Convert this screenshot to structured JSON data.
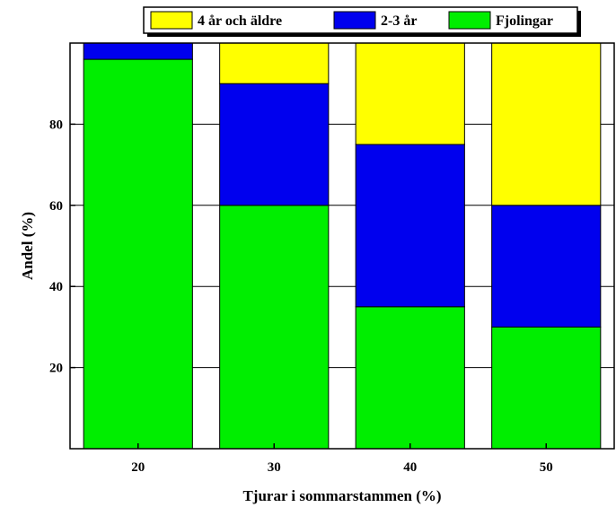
{
  "chart_data": {
    "type": "bar",
    "stacked": true,
    "categories": [
      "20",
      "30",
      "40",
      "50"
    ],
    "series": [
      {
        "name": "Fjolingar",
        "color": "#00ee00",
        "values": [
          96,
          60,
          35,
          30
        ]
      },
      {
        "name": "2-3 år",
        "color": "#0000ee",
        "values": [
          4,
          30,
          40,
          30
        ]
      },
      {
        "name": "4 år och äldre",
        "color": "#ffff00",
        "values": [
          0,
          10,
          25,
          40
        ]
      }
    ],
    "xlabel": "Tjurar i sommarstammen (%)",
    "ylabel": "Andel (%)",
    "ylim": [
      0,
      100
    ],
    "yticks": [
      20,
      40,
      60,
      80
    ],
    "grid": true,
    "legend": {
      "position": "top-center",
      "order": [
        "4 år och äldre",
        "2-3 år",
        "Fjolingar"
      ]
    }
  }
}
